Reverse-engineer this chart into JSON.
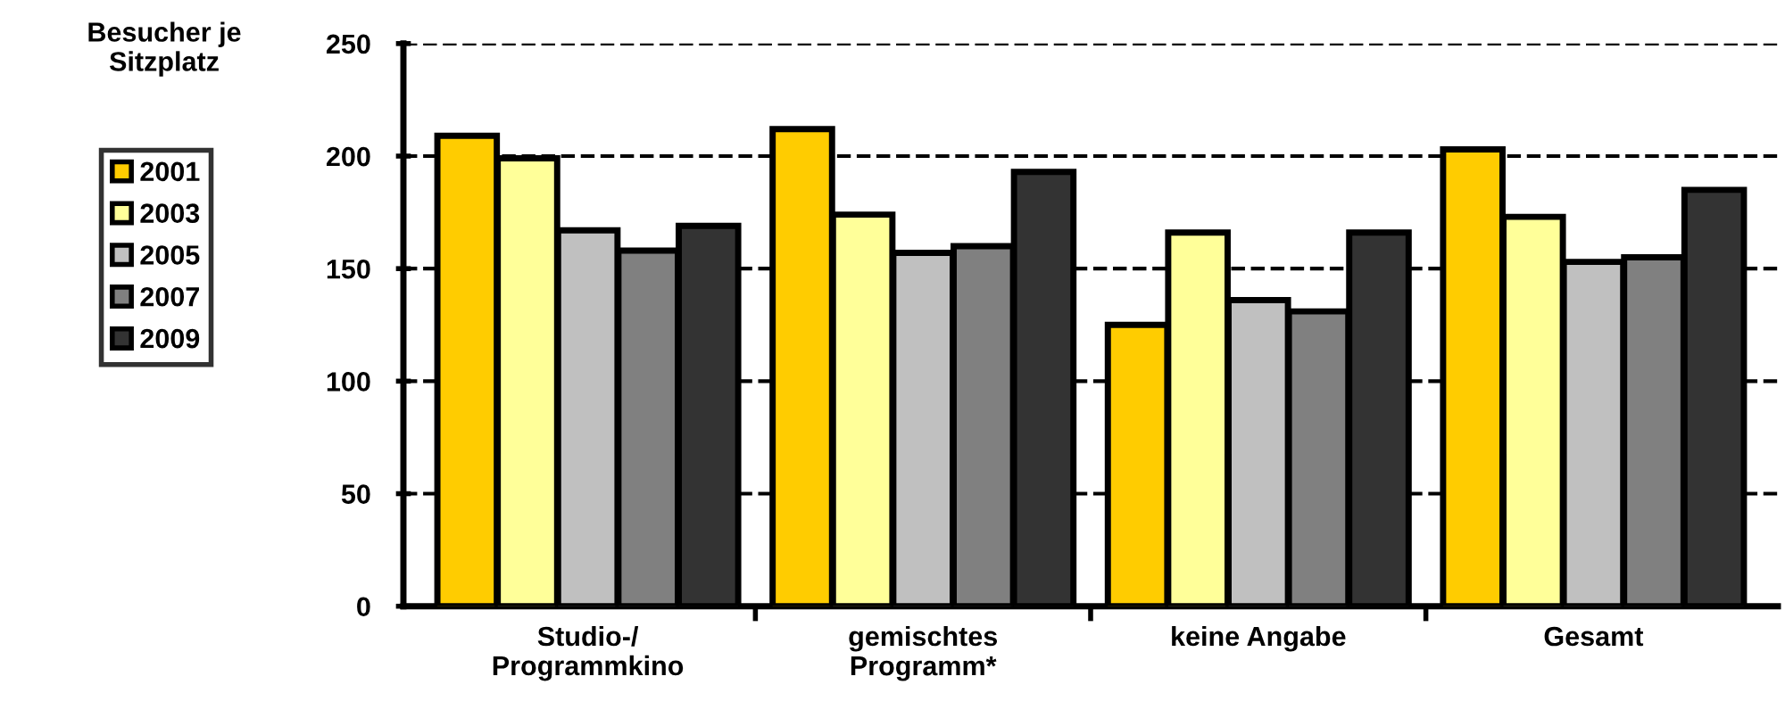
{
  "chart_data": {
    "type": "bar",
    "ylabel": "Besucher je\nSitzplatz",
    "categories": [
      "Studio-/\nProgrammkino",
      "gemischtes\nProgramm*",
      "keine Angabe",
      "Gesamt"
    ],
    "series": [
      {
        "name": "2001",
        "color": "#ffcc00",
        "values": [
          209,
          212,
          125,
          203
        ]
      },
      {
        "name": "2003",
        "color": "#ffff99",
        "values": [
          199,
          174,
          166,
          173
        ]
      },
      {
        "name": "2005",
        "color": "#c0c0c0",
        "values": [
          167,
          157,
          136,
          153
        ]
      },
      {
        "name": "2007",
        "color": "#808080",
        "values": [
          158,
          160,
          131,
          155
        ]
      },
      {
        "name": "2009",
        "color": "#333333",
        "values": [
          169,
          193,
          166,
          185
        ]
      }
    ],
    "ylim": [
      0,
      250
    ],
    "yticks": [
      0,
      50,
      100,
      150,
      200,
      250
    ],
    "grid": "y",
    "legend": "left"
  }
}
